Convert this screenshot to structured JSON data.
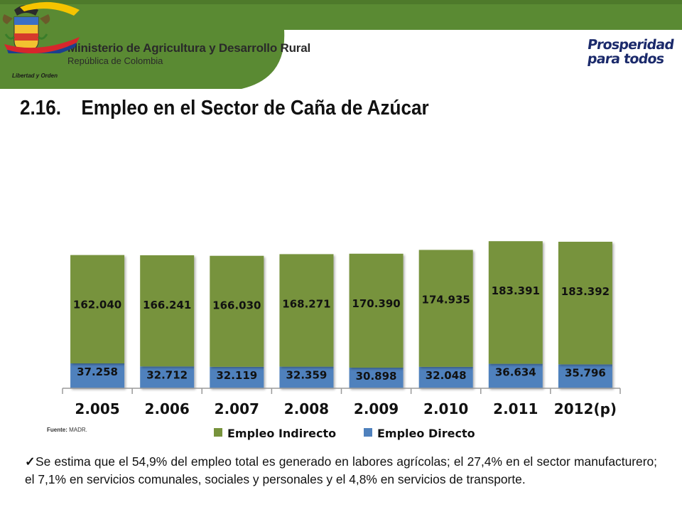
{
  "header": {
    "ministry": "Ministerio de Agricultura y Desarrollo Rural",
    "country": "República de Colombia",
    "crest_caption": "Libertad y Orden",
    "brand_line1": "Prosperidad",
    "brand_line2": "para todos",
    "colors": {
      "band": "#5a8a33",
      "band_dark": "#4e7a2b"
    }
  },
  "heading": {
    "number": "2.16.",
    "title": "Empleo en el Sector de Caña de Azúcar"
  },
  "source": {
    "label": "Fuente:",
    "value": "MADR."
  },
  "footnote": {
    "icon": "check-icon",
    "text": "Se estima que el 54,9% del empleo total es generado en labores agrícolas; el 27,4% en el sector manufacturero; el 7,1% en servicios comunales, sociales y personales y el 4,8% en servicios de transporte."
  },
  "chart_data": {
    "type": "bar",
    "stacked": true,
    "categories": [
      "2.005",
      "2.006",
      "2.007",
      "2.008",
      "2.009",
      "2.010",
      "2.011",
      "2012(p)"
    ],
    "series": [
      {
        "name": "Empleo Directo",
        "color": "#4f81bd",
        "values": [
          37258,
          32712,
          32119,
          32359,
          30898,
          32048,
          36634,
          35796
        ],
        "labels": [
          "37.258",
          "32.712",
          "32.119",
          "32.359",
          "30.898",
          "32.048",
          "36.634",
          "35.796"
        ]
      },
      {
        "name": "Empleo Indirecto",
        "color": "#77933c",
        "values": [
          162040,
          166241,
          166030,
          168271,
          170390,
          174935,
          183391,
          183392
        ],
        "labels": [
          "162.040",
          "166.241",
          "166.030",
          "168.271",
          "170.390",
          "174.935",
          "183.391",
          "183.392"
        ]
      }
    ],
    "legend": {
      "position": "bottom",
      "order": [
        "Empleo Indirecto",
        "Empleo Directo"
      ]
    },
    "grid": false,
    "ylim": [
      0,
      220000
    ]
  }
}
